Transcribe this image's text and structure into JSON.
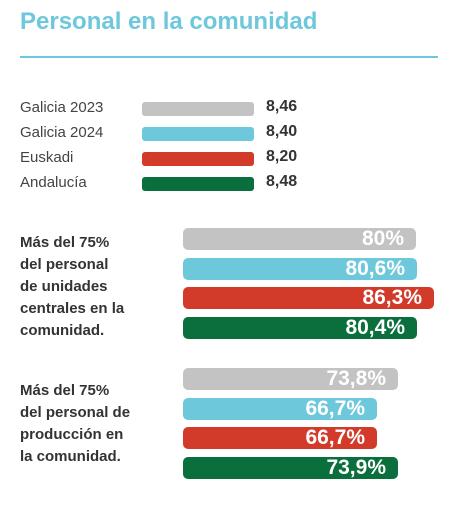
{
  "title": "Personal en la comunidad",
  "legend": [
    {
      "label": "Galicia 2023",
      "value": "8,46",
      "color": "#c4c3c3"
    },
    {
      "label": "Galicia 2024",
      "value": "8,40",
      "color": "#6ec8dc"
    },
    {
      "label": "Euskadi",
      "value": "8,20",
      "color": "#d23a2a"
    },
    {
      "label": "Andalucía",
      "value": "8,48",
      "color": "#0b6e3d"
    }
  ],
  "chart_data": {
    "type": "bar",
    "title": "Personal en la comunidad",
    "series_names": [
      "Galicia 2023",
      "Galicia 2024",
      "Euskadi",
      "Andalucía"
    ],
    "colors": [
      "#c4c3c3",
      "#6ec8dc",
      "#d23a2a",
      "#0b6e3d"
    ],
    "groups": [
      {
        "label_lines": [
          "Más del 75%",
          "del personal",
          "de unidades",
          "centrales en la",
          "comunidad."
        ],
        "values": [
          80,
          80.6,
          86.3,
          80.4
        ],
        "value_labels": [
          "80%",
          "80,6%",
          "86,3%",
          "80,4%"
        ]
      },
      {
        "label_lines": [
          "Más del 75%",
          "del personal de",
          "producción en",
          "la comunidad."
        ],
        "values": [
          73.8,
          66.7,
          66.7,
          73.9
        ],
        "value_labels": [
          "73,8%",
          "66,7%",
          "66,7%",
          "73,9%"
        ]
      }
    ]
  }
}
